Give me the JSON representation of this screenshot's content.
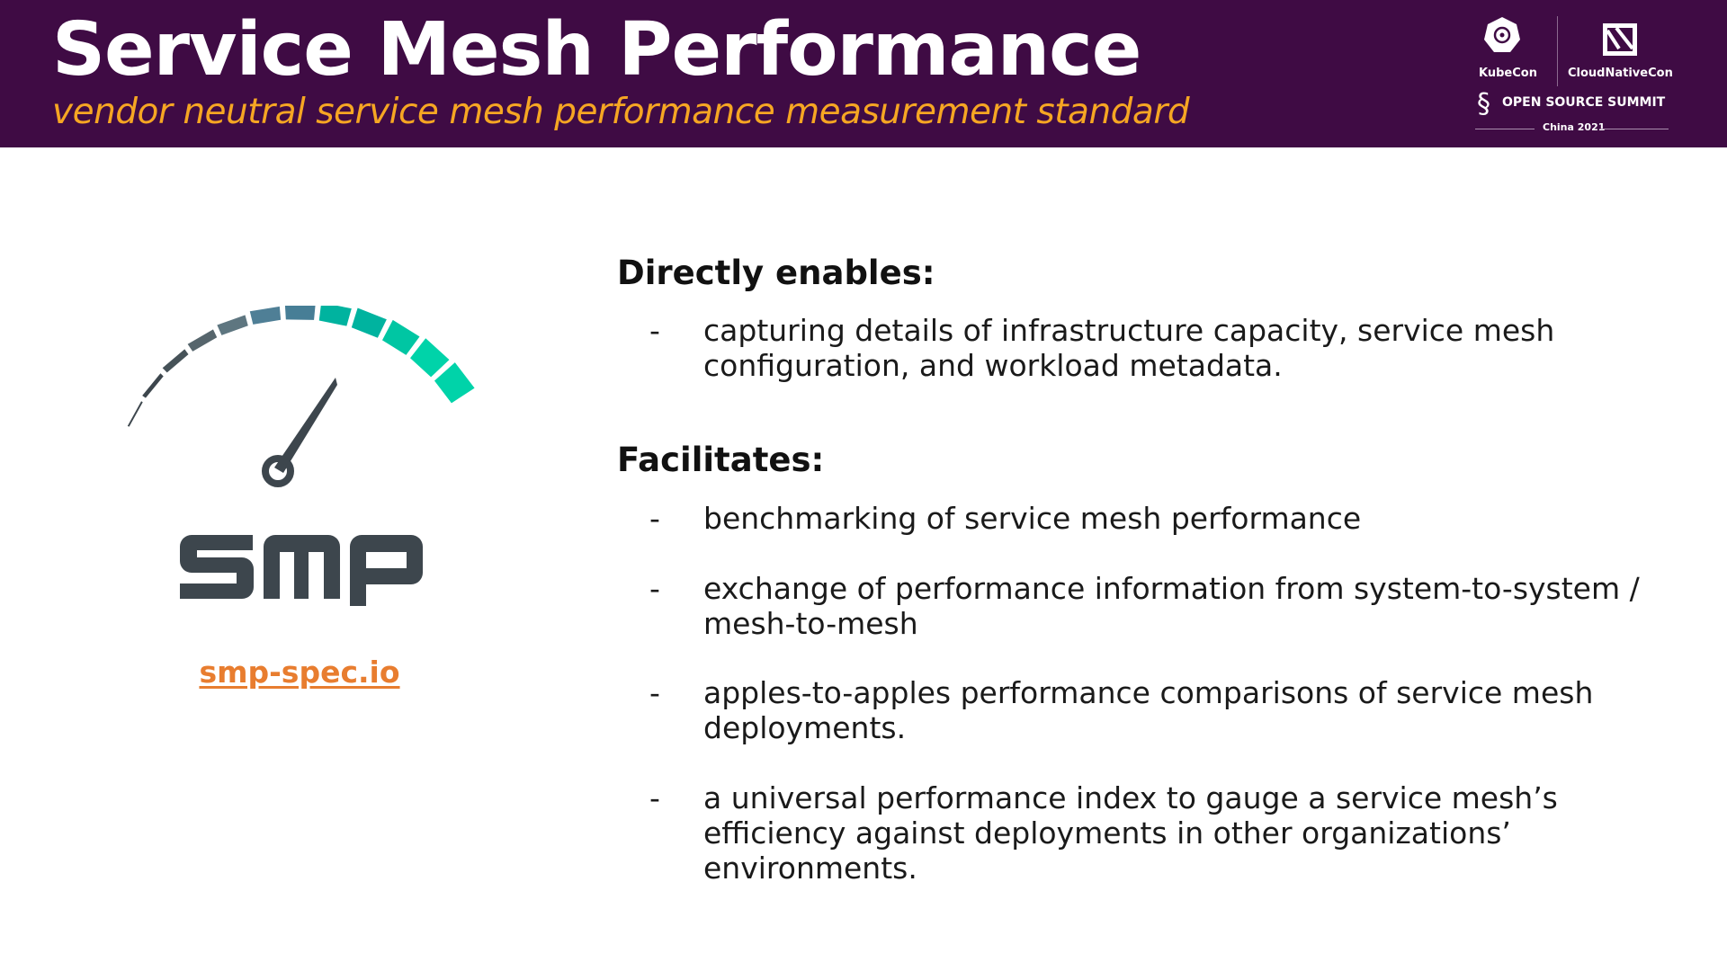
{
  "header": {
    "title": "Service Mesh Performance",
    "subtitle": "vendor neutral service mesh performance measurement standard",
    "event_logo": {
      "kubecon": "KubeCon",
      "cloudnativecon": "CloudNativeCon",
      "oss": "OPEN SOURCE SUMMIT",
      "edition": "China 2021"
    }
  },
  "logo": {
    "wordmark": "SMP",
    "link": "smp-spec.io",
    "colors": {
      "dark": "#3d464d",
      "teal": "#00d3a9",
      "blue": "#477e96",
      "link": "#e87d2f"
    }
  },
  "directly_enables": {
    "heading": "Directly enables:",
    "items": [
      "capturing details of infrastructure capacity, service mesh configuration, and workload metadata."
    ]
  },
  "facilitates": {
    "heading": "Facilitates:",
    "items": [
      "benchmarking of service mesh performance",
      "exchange of performance information from system-to-system / mesh-to-mesh",
      "apples-to-apples performance comparisons of service mesh deployments.",
      "a universal performance index to gauge a service mesh’s efficiency against deployments in other organizations’ environments."
    ]
  },
  "bullet": "-"
}
